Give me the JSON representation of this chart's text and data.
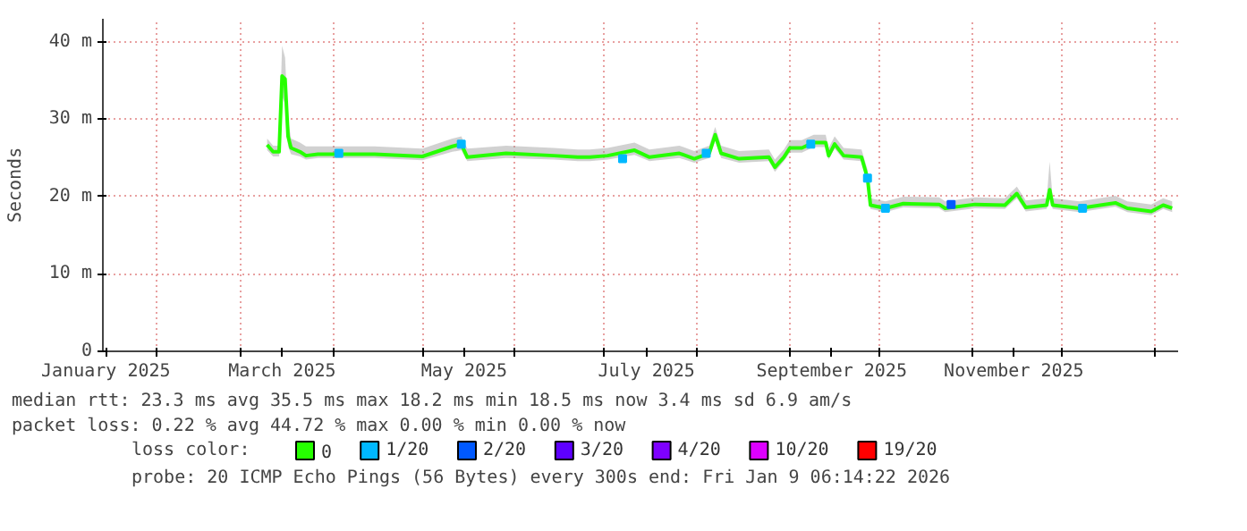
{
  "chart_data": {
    "type": "line",
    "ylabel": "Seconds",
    "legend_title": "loss color:",
    "legend": "bottom",
    "grid": true,
    "xlim": [
      "2025-01-14",
      "2026-01-09"
    ],
    "xticks": [
      {
        "value": "2025-01-15",
        "label": "January 2025"
      },
      {
        "value": "2025-02-01",
        "label": null
      },
      {
        "value": "2025-03-01",
        "label": null
      },
      {
        "value": "2025-03-15",
        "label": "March 2025"
      },
      {
        "value": "2025-04-01",
        "label": null
      },
      {
        "value": "2025-05-01",
        "label": null
      },
      {
        "value": "2025-05-15",
        "label": "May 2025"
      },
      {
        "value": "2025-06-01",
        "label": null
      },
      {
        "value": "2025-07-01",
        "label": null
      },
      {
        "value": "2025-07-15",
        "label": "July 2025"
      },
      {
        "value": "2025-08-01",
        "label": null
      },
      {
        "value": "2025-09-01",
        "label": null
      },
      {
        "value": "2025-09-15",
        "label": "September 2025"
      },
      {
        "value": "2025-10-01",
        "label": null
      },
      {
        "value": "2025-11-01",
        "label": null
      },
      {
        "value": "2025-11-15",
        "label": "November 2025"
      },
      {
        "value": "2025-12-01",
        "label": null
      },
      {
        "value": "2026-01-01",
        "label": null
      }
    ],
    "ylim": [
      0,
      43
    ],
    "yticks": [
      0,
      {
        "value": 10,
        "label": "10 m"
      },
      {
        "value": 20,
        "label": "20 m"
      },
      {
        "value": 30,
        "label": "30 m"
      },
      {
        "value": 40,
        "label": "40 m"
      }
    ],
    "series": [
      {
        "name": "0",
        "color": "#26ff00",
        "x": [
          "2025-03-10",
          "2025-03-12",
          "2025-03-14",
          "2025-03-15",
          "2025-03-16",
          "2025-03-17",
          "2025-03-18",
          "2025-03-21",
          "2025-03-23",
          "2025-03-27",
          "2025-04-15",
          "2025-05-01",
          "2025-05-11",
          "2025-05-14",
          "2025-05-16",
          "2025-05-29",
          "2025-06-14",
          "2025-06-22",
          "2025-06-26",
          "2025-07-02",
          "2025-07-11",
          "2025-07-16",
          "2025-07-26",
          "2025-07-31",
          "2025-08-05",
          "2025-08-07",
          "2025-08-09",
          "2025-08-15",
          "2025-08-25",
          "2025-08-27",
          "2025-08-30",
          "2025-09-01",
          "2025-09-05",
          "2025-09-09",
          "2025-09-13",
          "2025-09-14",
          "2025-09-16",
          "2025-09-19",
          "2025-09-25",
          "2025-09-27",
          "2025-09-28",
          "2025-10-03",
          "2025-10-09",
          "2025-10-21",
          "2025-10-23",
          "2025-11-02",
          "2025-11-12",
          "2025-11-16",
          "2025-11-19",
          "2025-11-26",
          "2025-11-27",
          "2025-11-28",
          "2025-12-07",
          "2025-12-19",
          "2025-12-23",
          "2025-12-31",
          "2026-01-04",
          "2026-01-07"
        ],
        "values": [
          26.7,
          25.8,
          25.8,
          35.6,
          35.2,
          27.8,
          26.3,
          25.8,
          25.3,
          25.5,
          25.5,
          25.2,
          26.5,
          26.8,
          25.1,
          25.6,
          25.3,
          25.1,
          25.1,
          25.3,
          26.0,
          25.1,
          25.6,
          24.9,
          25.6,
          28.0,
          25.6,
          24.9,
          25.1,
          23.8,
          25.1,
          26.3,
          26.3,
          27.0,
          27.0,
          25.3,
          26.8,
          25.3,
          25.1,
          22.4,
          18.9,
          18.5,
          19.1,
          19.0,
          18.5,
          19.0,
          18.9,
          20.4,
          18.6,
          18.9,
          20.9,
          18.9,
          18.5,
          19.2,
          18.5,
          18.1,
          18.9,
          18.5
        ],
        "lower": [
          26.0,
          25.2,
          25.2,
          33.0,
          32.0,
          26.5,
          25.5,
          25.2,
          24.8,
          25.0,
          25.0,
          24.7,
          25.8,
          26.0,
          24.6,
          25.0,
          24.8,
          24.6,
          24.6,
          24.8,
          25.4,
          24.6,
          25.0,
          24.4,
          25.0,
          27.2,
          25.0,
          24.4,
          24.6,
          23.2,
          24.6,
          25.7,
          25.7,
          26.4,
          26.4,
          24.8,
          26.2,
          24.8,
          24.6,
          21.8,
          18.4,
          18.0,
          18.6,
          18.5,
          18.0,
          18.5,
          18.4,
          19.8,
          18.1,
          18.4,
          20.2,
          18.4,
          18.0,
          18.7,
          18.0,
          17.6,
          18.4,
          18.0
        ],
        "upper": [
          27.5,
          26.6,
          26.6,
          39.5,
          38.0,
          30.0,
          27.5,
          27.0,
          26.5,
          26.5,
          26.5,
          26.2,
          27.5,
          27.8,
          26.2,
          26.6,
          26.3,
          26.1,
          26.1,
          26.3,
          27.0,
          26.1,
          26.6,
          25.9,
          26.6,
          29.0,
          26.6,
          25.9,
          26.1,
          24.8,
          26.1,
          27.3,
          27.3,
          28.0,
          28.0,
          26.3,
          27.8,
          26.3,
          26.1,
          23.5,
          19.8,
          19.4,
          20.0,
          19.9,
          19.4,
          19.9,
          19.8,
          21.3,
          19.5,
          19.8,
          24.5,
          19.8,
          19.4,
          20.1,
          19.4,
          19.0,
          19.8,
          19.4
        ]
      },
      {
        "name": "1/20",
        "type": "scatter",
        "color": "#00b8ff",
        "x": [
          "2025-04-03",
          "2025-05-14",
          "2025-07-07",
          "2025-08-04",
          "2025-09-08",
          "2025-09-27",
          "2025-10-03",
          "2025-12-08"
        ],
        "values": [
          25.6,
          26.8,
          24.9,
          25.6,
          26.8,
          22.4,
          18.5,
          18.5
        ]
      },
      {
        "name": "2/20",
        "type": "scatter",
        "color": "#0059ff",
        "x": [
          "2025-10-25"
        ],
        "values": [
          19.0
        ]
      },
      {
        "name": "3/20",
        "type": "scatter",
        "color": "#5e00ff"
      },
      {
        "name": "4/20",
        "type": "scatter",
        "color": "#7e00ff"
      },
      {
        "name": "10/20",
        "type": "scatter",
        "color": "#dd00ff"
      },
      {
        "name": "19/20",
        "type": "scatter",
        "color": "#ff0000"
      }
    ],
    "annotations": [
      "median rtt:  23.3 ms avg  35.5 ms max  18.2 ms min  18.5 ms now  3.4 ms sd  6.9   am/s",
      "packet loss: 0.22 % avg  44.72 % max  0.00 % min  0.00 % now",
      "probe:       20 ICMP Echo Pings (56 Bytes) every 300s          end: Fri Jan  9 06:14:22 2026"
    ]
  }
}
